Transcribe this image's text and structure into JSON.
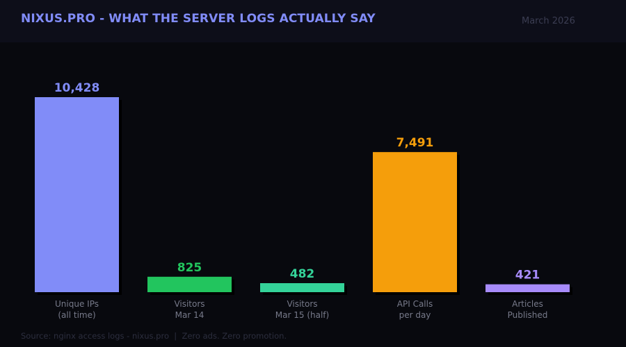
{
  "header": {
    "title": "NIXUS.PRO - WHAT THE SERVER LOGS ACTUALLY SAY",
    "date": "March 2026"
  },
  "footer": {
    "source": "Source: nginx access logs - nixus.pro  |  Zero ads. Zero promotion."
  },
  "chart_data": {
    "type": "bar",
    "title": "NIXUS.PRO - WHAT THE SERVER LOGS ACTUALLY SAY",
    "categories": [
      [
        "Unique IPs",
        "(all time)"
      ],
      [
        "Visitors",
        "Mar 14"
      ],
      [
        "Visitors",
        "Mar 15 (half)"
      ],
      [
        "API Calls",
        "per day"
      ],
      [
        "Articles",
        "Published"
      ]
    ],
    "values": [
      10428,
      825,
      482,
      7491,
      421
    ],
    "value_labels": [
      "10,428",
      "825",
      "482",
      "7,491",
      "421"
    ],
    "colors": [
      "#818cf8",
      "#22c55e",
      "#34d399",
      "#f59e0b",
      "#a78bfa"
    ],
    "ylim": [
      0,
      10428
    ],
    "grid": false,
    "legend": "none"
  }
}
